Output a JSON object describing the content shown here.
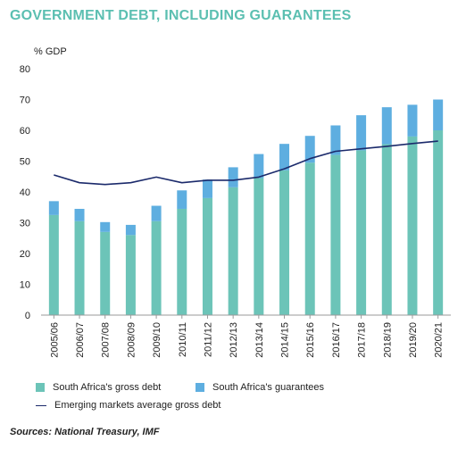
{
  "title": "GOVERNMENT DEBT, INCLUDING GUARANTEES",
  "source": "Sources: National Treasury, IMF",
  "colors": {
    "title": "#5bbfb1",
    "gross": "#6cc4b8",
    "guarantees": "#5eaee0",
    "em_line": "#1b2a6b"
  },
  "chart_data": {
    "type": "bar",
    "stacked": true,
    "ylabel": "% GDP",
    "xlabel": "",
    "ylim": [
      0,
      80
    ],
    "yticks": [
      0,
      10,
      20,
      30,
      40,
      50,
      60,
      70,
      80
    ],
    "grid": false,
    "legend_position": "bottom",
    "categories": [
      "2005/06",
      "2006/07",
      "2007/08",
      "2008/09",
      "2009/10",
      "2010/11",
      "2011/12",
      "2012/13",
      "2013/14",
      "2014/15",
      "2015/16",
      "2016/17",
      "2017/18",
      "2018/19",
      "2019/20",
      "2020/21"
    ],
    "series": [
      {
        "name": "South Africa's gross debt",
        "kind": "bar",
        "color": "#6cc4b8",
        "values": [
          32.5,
          30.5,
          27,
          26,
          30.5,
          34.5,
          38,
          41.5,
          44.5,
          47,
          49.5,
          52,
          53.5,
          55.5,
          58,
          60
        ]
      },
      {
        "name": "South Africa's guarantees",
        "kind": "bar",
        "color": "#5eaee0",
        "values": [
          4.5,
          4,
          3.2,
          3.3,
          5,
          6,
          6,
          6.5,
          7.8,
          8.6,
          8.7,
          9.6,
          11.4,
          12,
          10.3,
          10
        ]
      },
      {
        "name": "Emerging markets average gross debt",
        "kind": "line",
        "color": "#1b2a6b",
        "values": [
          45.5,
          43,
          42.4,
          43,
          44.8,
          43,
          43.8,
          43.8,
          44.8,
          47.5,
          50.8,
          53.2,
          54,
          54.8,
          55.7,
          56.5
        ]
      }
    ]
  }
}
